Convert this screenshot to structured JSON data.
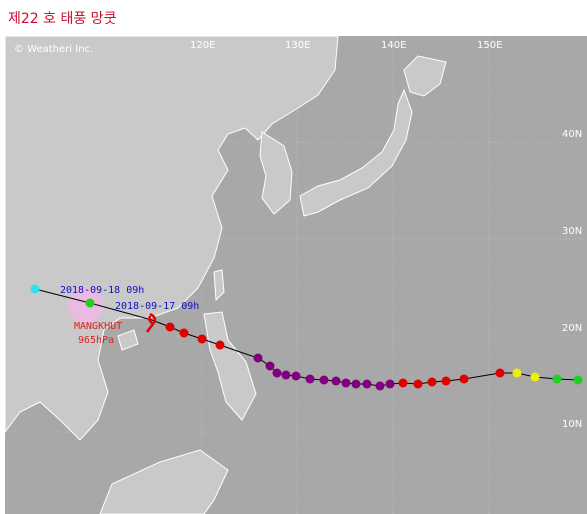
{
  "header": {
    "title": "제22 호 태풍 망쿳"
  },
  "map": {
    "credit": "© Weatheri Inc.",
    "longitude_labels": [
      "120E",
      "130E",
      "140E",
      "150E"
    ],
    "latitude_labels": [
      "40N",
      "30N",
      "20N",
      "10N"
    ],
    "annotations": [
      "2018-09-18 09h",
      "2018-09-17 09h",
      "MANGKHUT",
      "965hPa"
    ]
  }
}
